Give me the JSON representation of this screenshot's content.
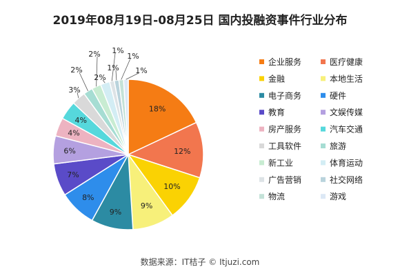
{
  "chart_data": {
    "type": "pie",
    "title": "2019年08月19日-08月25日 国内投融资事件行业分布",
    "categories": [
      "企业服务",
      "医疗健康",
      "金融",
      "本地生活",
      "电子商务",
      "硬件",
      "教育",
      "文娱传媒",
      "房产服务",
      "汽车交通",
      "工具软件",
      "旅游",
      "新工业",
      "体育运动",
      "广告营销",
      "社交网络",
      "物流",
      "游戏"
    ],
    "values": [
      18,
      12,
      10,
      9,
      9,
      8,
      7,
      6,
      4,
      4,
      3,
      2,
      2,
      2,
      1,
      1,
      1,
      1
    ],
    "slice_labels": [
      "18%",
      "12%",
      "10%",
      "9%",
      "9%",
      "8%",
      "7%",
      "6%",
      "4%",
      "4%",
      "3%",
      "2%",
      "2%",
      "2%",
      "1%",
      "1%",
      "1%",
      "1%"
    ],
    "colors": [
      "#F57C14",
      "#F2764E",
      "#FAD203",
      "#F7F07A",
      "#2C8BA3",
      "#2E8DEB",
      "#5A4BC8",
      "#B4A0E0",
      "#EDB3C1",
      "#56D8DC",
      "#D9D9D9",
      "#A6DDD3",
      "#C8ECD2",
      "#D3EDF4",
      "#DDE3E6",
      "#B9D3DC",
      "#C4E2D8",
      "#DCE8F5"
    ],
    "legend_placement": "right",
    "source": "数据来源：IT桔子 © Itjuzi.com"
  }
}
